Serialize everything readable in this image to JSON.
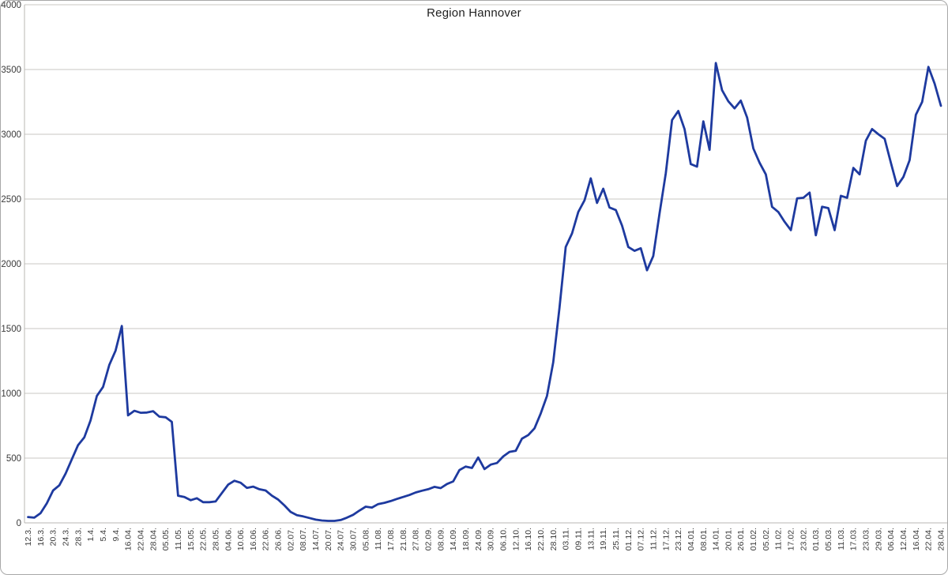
{
  "chart_data": {
    "type": "line",
    "title": "Region Hannover",
    "xlabel": "",
    "ylabel": "",
    "ylim": [
      0,
      4000
    ],
    "y_ticks": [
      0,
      500,
      1000,
      1500,
      2000,
      2500,
      3000,
      3500,
      4000
    ],
    "grid": "horizontal",
    "legend": "none",
    "x_labels": [
      "12.3.",
      "16.3.",
      "20.3.",
      "24.3.",
      "28.3.",
      "1.4.",
      "5.4.",
      "9.4.",
      "16.04.",
      "22.04.",
      "28.04.",
      "05.05.",
      "11.05.",
      "15.05.",
      "22.05.",
      "28.05.",
      "04.06.",
      "10.06.",
      "16.06.",
      "22.06.",
      "26.06.",
      "02.07.",
      "08.07.",
      "14.07.",
      "20.07.",
      "24.07.",
      "30.07.",
      "05.08.",
      "11.08.",
      "17.08.",
      "21.08.",
      "27.08.",
      "02.09.",
      "08.09.",
      "14.09.",
      "18.09.",
      "24.09.",
      "30.09.",
      "06.10.",
      "12.10.",
      "16.10.",
      "22.10.",
      "28.10.",
      "03.11.",
      "09.11.",
      "13.11.",
      "19.11.",
      "25.11.",
      "01.12.",
      "07.12.",
      "11.12.",
      "17.12.",
      "23.12.",
      "04.01.",
      "08.01.",
      "14.01.",
      "20.01.",
      "26.01.",
      "01.02.",
      "05.02.",
      "11.02.",
      "17.02.",
      "23.02.",
      "01.03.",
      "05.03.",
      "11.03.",
      "17.03.",
      "23.03.",
      "29.03.",
      "06.04.",
      "12.04.",
      "16.04.",
      "22.04.",
      "28.04."
    ],
    "label_every_nth_point": 2,
    "series": [
      {
        "name": "Region Hannover",
        "color": "#1e3a9f",
        "values": [
          45,
          40,
          75,
          150,
          250,
          290,
          380,
          490,
          600,
          660,
          790,
          980,
          1050,
          1220,
          1330,
          1520,
          830,
          865,
          850,
          852,
          862,
          820,
          815,
          780,
          210,
          200,
          175,
          190,
          160,
          160,
          165,
          230,
          295,
          325,
          310,
          270,
          280,
          260,
          250,
          210,
          180,
          135,
          85,
          60,
          50,
          38,
          25,
          18,
          15,
          15,
          22,
          40,
          62,
          95,
          125,
          118,
          145,
          155,
          168,
          185,
          200,
          215,
          235,
          248,
          260,
          278,
          268,
          300,
          320,
          408,
          435,
          424,
          505,
          415,
          450,
          462,
          513,
          548,
          556,
          650,
          678,
          730,
          845,
          980,
          1240,
          1660,
          2130,
          2235,
          2400,
          2490,
          2660,
          2470,
          2580,
          2435,
          2415,
          2295,
          2130,
          2100,
          2120,
          1950,
          2060,
          2390,
          2700,
          3110,
          3180,
          3040,
          2770,
          2750,
          3100,
          2880,
          3550,
          3340,
          3255,
          3200,
          3260,
          3130,
          2890,
          2780,
          2690,
          2440,
          2400,
          2325,
          2260,
          2505,
          2510,
          2550,
          2220,
          2440,
          2430,
          2260,
          2525,
          2510,
          2740,
          2690,
          2950,
          3040,
          3000,
          2965,
          2780,
          2600,
          2670,
          2800,
          3150,
          3250,
          3520,
          3390,
          3220
        ]
      }
    ]
  },
  "colors": {
    "line": "#1e3a9f",
    "gridline": "#c9c7c3",
    "axis_line": "#b9b7b3",
    "axis_text": "#3a3a3a",
    "title_text": "#1f1f1f",
    "background": "#ffffff"
  }
}
